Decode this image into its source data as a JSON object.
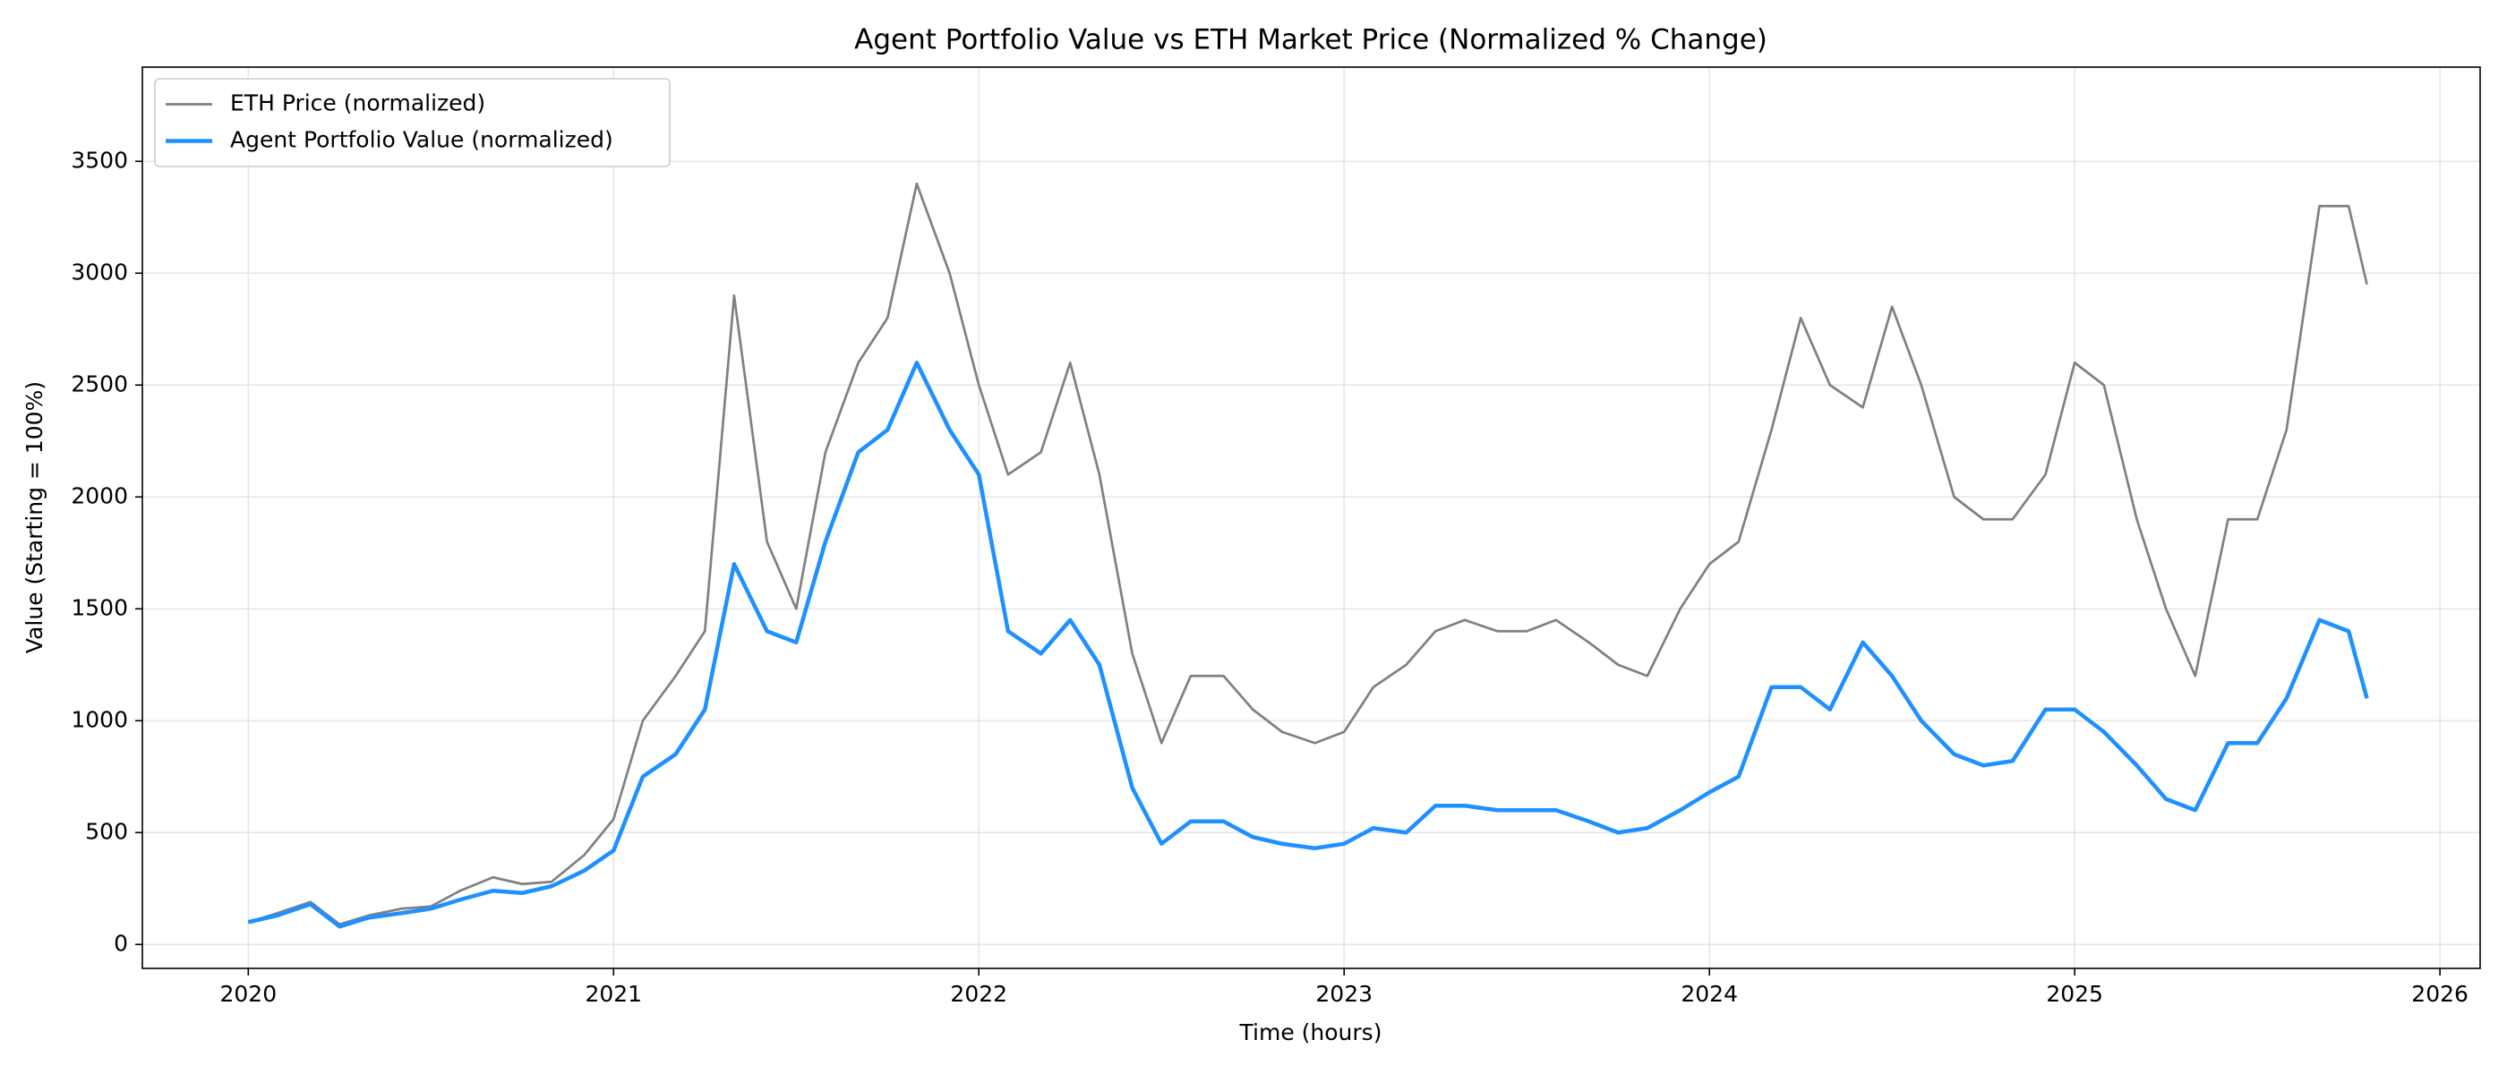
{
  "chart_data": {
    "type": "line",
    "title": "Agent Portfolio Value vs ETH Market Price (Normalized % Change)",
    "xlabel": "Time (hours)",
    "ylabel": "Value (Starting = 100%)",
    "x": [
      2020.0,
      2020.08,
      2020.17,
      2020.25,
      2020.33,
      2020.42,
      2020.5,
      2020.58,
      2020.67,
      2020.75,
      2020.83,
      2020.92,
      2021.0,
      2021.08,
      2021.17,
      2021.25,
      2021.33,
      2021.42,
      2021.5,
      2021.58,
      2021.67,
      2021.75,
      2021.83,
      2021.92,
      2022.0,
      2022.08,
      2022.17,
      2022.25,
      2022.33,
      2022.42,
      2022.5,
      2022.58,
      2022.67,
      2022.75,
      2022.83,
      2022.92,
      2023.0,
      2023.08,
      2023.17,
      2023.25,
      2023.33,
      2023.42,
      2023.5,
      2023.58,
      2023.67,
      2023.75,
      2023.83,
      2023.92,
      2024.0,
      2024.08,
      2024.17,
      2024.25,
      2024.33,
      2024.42,
      2024.5,
      2024.58,
      2024.67,
      2024.75,
      2024.83,
      2024.92,
      2025.0,
      2025.08,
      2025.17,
      2025.25,
      2025.33,
      2025.42,
      2025.5,
      2025.58,
      2025.67,
      2025.75,
      2025.8
    ],
    "series": [
      {
        "name": "ETH Price (normalized)",
        "color": "#808080",
        "width": 2.7,
        "values": [
          100,
          140,
          190,
          90,
          130,
          160,
          170,
          240,
          300,
          270,
          280,
          400,
          560,
          1000,
          1200,
          1400,
          2900,
          1800,
          1500,
          2200,
          2600,
          2800,
          3400,
          3000,
          2500,
          2100,
          2200,
          2600,
          2100,
          1300,
          900,
          1200,
          1200,
          1050,
          950,
          900,
          950,
          1150,
          1250,
          1400,
          1450,
          1400,
          1400,
          1450,
          1350,
          1250,
          1200,
          1500,
          1700,
          1800,
          2300,
          2800,
          2500,
          2400,
          2850,
          2500,
          2000,
          1900,
          1900,
          2100,
          2600,
          2500,
          1900,
          1500,
          1200,
          1900,
          1900,
          2300,
          3300,
          3300,
          2950
        ]
      },
      {
        "name": "Agent Portfolio Value (normalized)",
        "color": "#1e90ff",
        "width": 4.5,
        "values": [
          100,
          130,
          180,
          80,
          120,
          140,
          160,
          200,
          240,
          230,
          260,
          330,
          420,
          750,
          850,
          1050,
          1700,
          1400,
          1350,
          1800,
          2200,
          2300,
          2600,
          2300,
          2100,
          1400,
          1300,
          1450,
          1250,
          700,
          450,
          550,
          550,
          480,
          450,
          430,
          450,
          520,
          500,
          620,
          620,
          600,
          600,
          600,
          550,
          500,
          520,
          600,
          680,
          750,
          1150,
          1150,
          1050,
          1350,
          1200,
          1000,
          850,
          800,
          820,
          1050,
          1050,
          950,
          800,
          650,
          600,
          900,
          900,
          1100,
          1450,
          1400,
          1100
        ]
      }
    ],
    "xlim": [
      2019.71,
      2026.11
    ],
    "xticks": [
      2020,
      2021,
      2022,
      2023,
      2024,
      2025,
      2026
    ],
    "ylim": [
      -107,
      3921
    ],
    "yticks": [
      0,
      500,
      1000,
      1500,
      2000,
      2500,
      3000,
      3500
    ],
    "grid": true,
    "legend": "upper left"
  }
}
